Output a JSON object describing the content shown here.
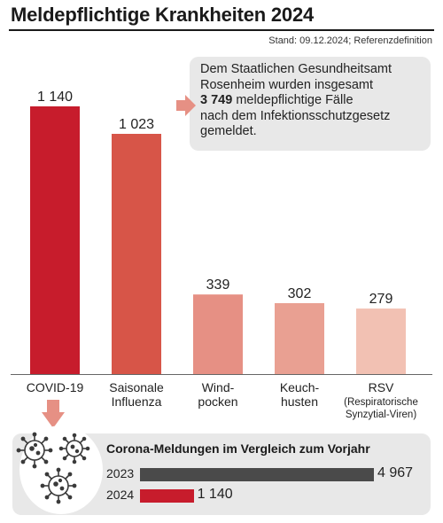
{
  "title": "Meldepflichtige Krankheiten 2024",
  "stand": "Stand: 09.12.2024; Referenzdefinition",
  "info": {
    "line1": "Dem Staatlichen Gesundheitsamt",
    "line2": "Rosenheim wurden insgesamt",
    "total": "3 749",
    "line3_rest": " meldepflichtige Fälle",
    "line4": "nach dem Infektionsschutzgesetz",
    "line5": "gemeldet."
  },
  "chart_data": [
    {
      "type": "bar",
      "categories": [
        [
          "COVID-19"
        ],
        [
          "Saisonale",
          "Influenza"
        ],
        [
          "Wind-",
          "pocken"
        ],
        [
          "Keuch-",
          "husten"
        ],
        [
          "RSV",
          "(Respiratorische",
          "Synzytial-Viren)"
        ]
      ],
      "values": [
        1140,
        1023,
        339,
        302,
        279
      ],
      "value_labels": [
        "1 140",
        "1 023",
        "339",
        "302",
        "279"
      ],
      "colors": [
        "#c71c2c",
        "#d75548",
        "#e69084",
        "#e9a092",
        "#f2c1b3"
      ],
      "ylim": [
        0,
        1140
      ],
      "grid": false
    },
    {
      "type": "bar",
      "orientation": "horizontal",
      "title": "Corona-Meldungen im Vergleich zum Vorjahr",
      "categories": [
        "2023",
        "2024"
      ],
      "values": [
        4967,
        1140
      ],
      "value_labels": [
        "4 967",
        "1 140"
      ],
      "colors": [
        "#4a4a4a",
        "#c71c2c"
      ],
      "xlim": [
        0,
        4967
      ]
    }
  ],
  "colors": {
    "accent_arrow": "#e69084",
    "panel_bg": "#e8e8e8"
  }
}
